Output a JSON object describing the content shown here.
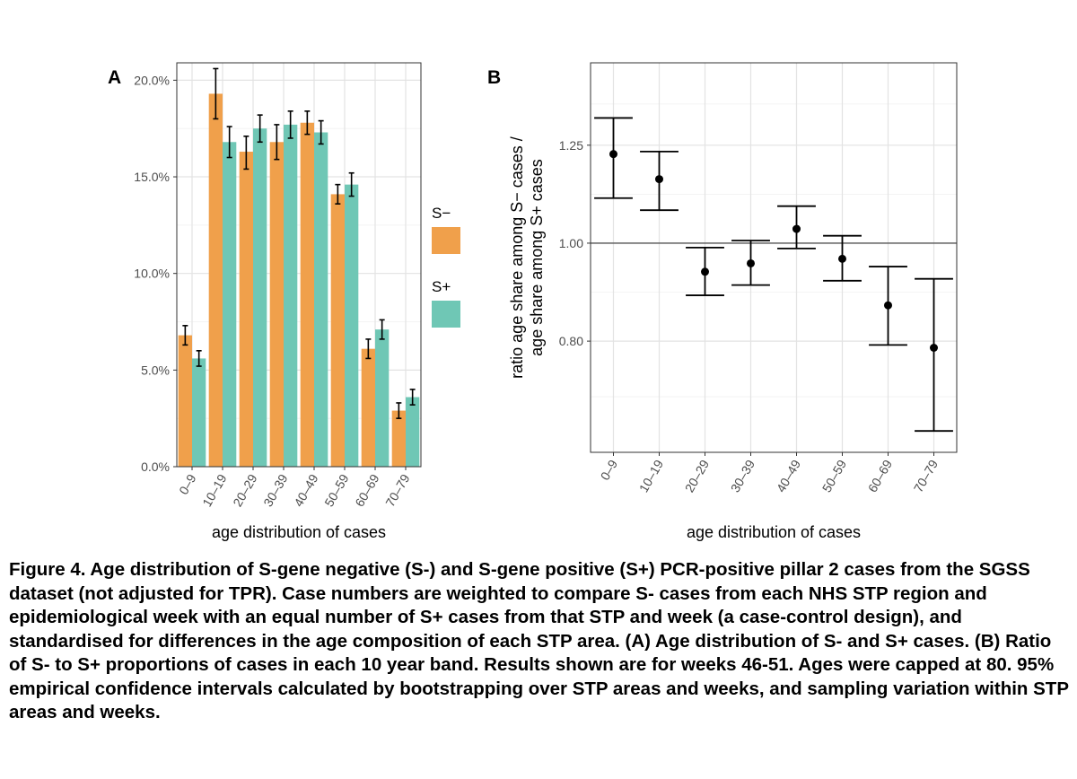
{
  "chart_data": [
    {
      "type": "bar",
      "panel_label": "A",
      "categories": [
        "0–9",
        "10–19",
        "20–29",
        "30–39",
        "40–49",
        "50–59",
        "60–69",
        "70–79"
      ],
      "series": [
        {
          "name": "S−",
          "color": "#f0a04b",
          "values": [
            6.8,
            19.3,
            16.3,
            16.8,
            17.8,
            14.1,
            6.1,
            2.9
          ],
          "ci_low": [
            6.3,
            18.0,
            15.4,
            15.9,
            17.2,
            13.6,
            5.6,
            2.5
          ],
          "ci_high": [
            7.3,
            20.6,
            17.1,
            17.7,
            18.4,
            14.6,
            6.6,
            3.3
          ]
        },
        {
          "name": "S+",
          "color": "#6fc7b5",
          "values": [
            5.6,
            16.8,
            17.5,
            17.7,
            17.3,
            14.6,
            7.1,
            3.6
          ],
          "ci_low": [
            5.2,
            16.0,
            16.8,
            17.0,
            16.7,
            14.0,
            6.6,
            3.2
          ],
          "ci_high": [
            6.0,
            17.6,
            18.2,
            18.4,
            17.9,
            15.2,
            7.6,
            4.0
          ]
        }
      ],
      "xlabel": "age distribution of cases",
      "ylabel": "",
      "ylim": [
        0,
        20.9
      ],
      "yticks": [
        0,
        5,
        10,
        15,
        20
      ],
      "ytick_labels": [
        "0.0%",
        "5.0%",
        "10.0%",
        "15.0%",
        "20.0%"
      ],
      "legend_position": "right",
      "grid": true
    },
    {
      "type": "scatter",
      "panel_label": "B",
      "categories": [
        "0–9",
        "10–19",
        "20–29",
        "30–39",
        "40–49",
        "50–59",
        "60–69",
        "70–79"
      ],
      "values": [
        1.225,
        1.157,
        0.937,
        0.955,
        1.033,
        0.965,
        0.868,
        0.788
      ],
      "ci_low": [
        1.108,
        1.078,
        0.888,
        0.909,
        0.988,
        0.918,
        0.793,
        0.652
      ],
      "ci_high": [
        1.33,
        1.232,
        0.99,
        1.006,
        1.088,
        1.017,
        0.948,
        0.922
      ],
      "reference_line": 1.0,
      "xlabel": "age distribution of cases",
      "ylabel": "ratio age share among S− cases /\nage share among S+ cases",
      "scale": "log",
      "ylim": [
        0.621,
        1.508
      ],
      "yticks": [
        0.8,
        1.0,
        1.25
      ],
      "ytick_labels": [
        "0.80",
        "1.00",
        "1.25"
      ],
      "grid": true
    }
  ],
  "caption": "Figure 4. Age distribution of S-gene negative (S-) and S-gene positive (S+) PCR-positive pillar 2 cases from the SGSS dataset (not adjusted for TPR). Case numbers are weighted to compare S- cases from each NHS STP region and epidemiological week with an equal number of S+ cases from that STP and week (a case-control design), and standardised for differences in the age composition of each STP area. (A) Age distribution of S- and S+ cases. (B) Ratio of S- to S+ proportions of cases in each 10 year band. Results shown are for weeks 46-51. Ages were capped at 80. 95% empirical confidence intervals calculated by bootstrapping over STP areas and weeks, and sampling variation within STP areas and weeks."
}
